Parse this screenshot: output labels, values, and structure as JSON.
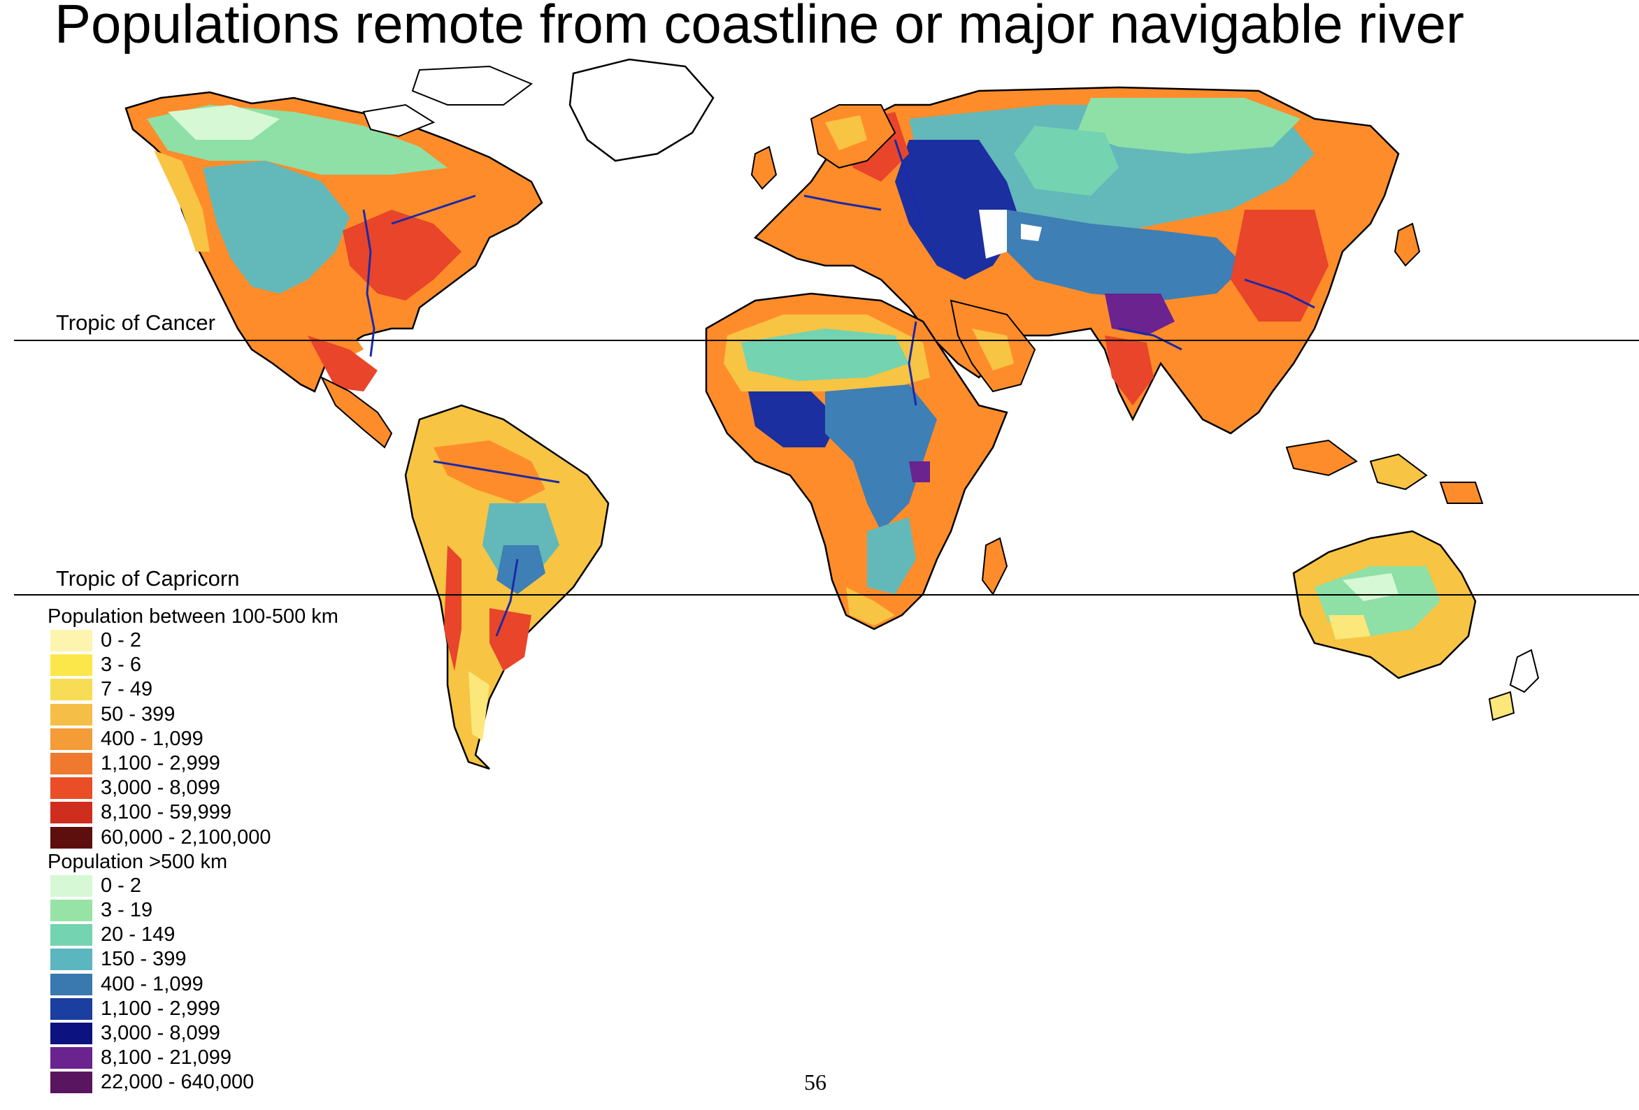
{
  "title": "Populations remote from coastline or major navigable river",
  "map": {
    "tropic_of_cancer_label": "Tropic of Cancer",
    "tropic_of_capricorn_label": "Tropic of Capricorn",
    "colors": {
      "coast": "#ff8c2a",
      "coast_dense": "#e8452a",
      "coast_light": "#f7c444",
      "coast_pale": "#fbe77a",
      "interior": "#63b8ba",
      "interior_mid": "#3e7fb5",
      "interior_light": "#8ee0a6",
      "interior_dark": "#1b2fa0",
      "river": "#1a2aa8",
      "outline": "#000000",
      "ice": "#ffffff"
    }
  },
  "legend": {
    "near": {
      "title": "Population between 100-500 km",
      "items": [
        {
          "label": "0 - 2",
          "color": "#fdf4b0"
        },
        {
          "label": "3 - 6",
          "color": "#fbe74a"
        },
        {
          "label": "7 - 49",
          "color": "#f8dc56"
        },
        {
          "label": "50 - 399",
          "color": "#f5be46"
        },
        {
          "label": "400 - 1,099",
          "color": "#f39c38"
        },
        {
          "label": "1,100 - 2,999",
          "color": "#ef7a2f"
        },
        {
          "label": "3,000 - 8,099",
          "color": "#ea4e26"
        },
        {
          "label": "8,100 - 59,999",
          "color": "#cf2e1f"
        },
        {
          "label": "60,000 - 2,100,000",
          "color": "#5c0f0c"
        }
      ]
    },
    "far": {
      "title": "Population >500 km",
      "items": [
        {
          "label": "0 - 2",
          "color": "#d6f8d4"
        },
        {
          "label": "3 - 19",
          "color": "#97e3a5"
        },
        {
          "label": "20 - 149",
          "color": "#74d3b1"
        },
        {
          "label": "150 - 399",
          "color": "#5cb6c0"
        },
        {
          "label": "400 - 1,099",
          "color": "#3a78b0"
        },
        {
          "label": "1,100 - 2,999",
          "color": "#1a3fa0"
        },
        {
          "label": "3,000 - 8,099",
          "color": "#0c1380"
        },
        {
          "label": "8,100 - 21,099",
          "color": "#6a238f"
        },
        {
          "label": "22,000 - 640,000",
          "color": "#5a1560"
        }
      ]
    }
  },
  "page_number": "56"
}
